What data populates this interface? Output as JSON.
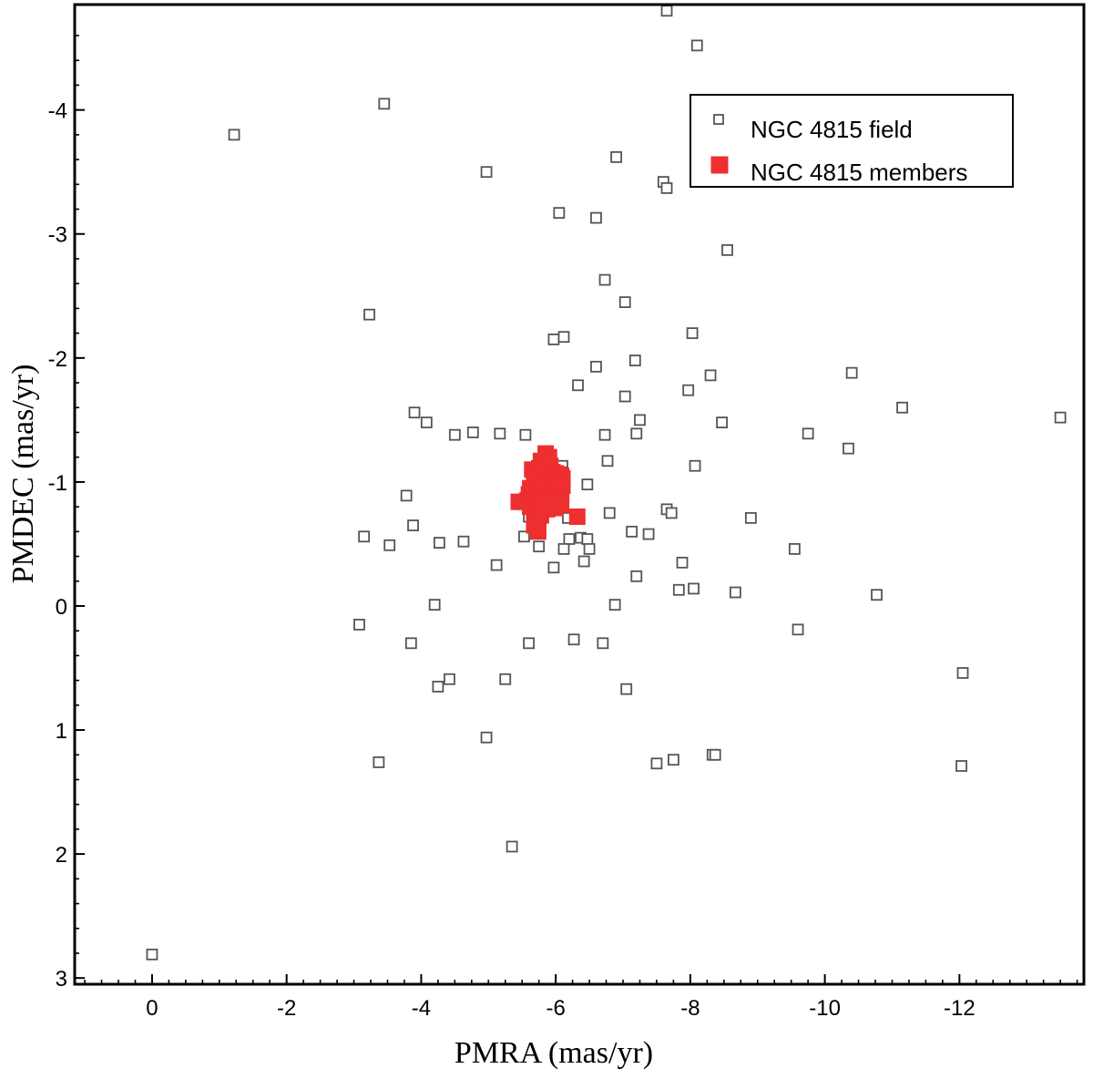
{
  "chart_data": {
    "type": "scatter",
    "xlabel": "PMRA (mas/yr)",
    "ylabel": "PMDEC (mas/yr)",
    "xlim": [
      1.15,
      -13.85
    ],
    "ylim": [
      3.05,
      -4.85
    ],
    "x_reversed": true,
    "y_reversed": true,
    "xticks": [
      0,
      -2,
      -4,
      -6,
      -8,
      -10,
      -12
    ],
    "xtick_labels": [
      "0",
      "-2",
      "-4",
      "-6",
      "-8",
      "-10",
      "-12"
    ],
    "yticks": [
      3,
      2,
      1,
      0,
      -1,
      -2,
      -3,
      -4
    ],
    "ytick_labels": [
      "3",
      "2",
      "1",
      "0",
      "-1",
      "-2",
      "-3",
      "-4"
    ],
    "grid": false,
    "legend": {
      "placement": "top-right",
      "entries": [
        "NGC 4815 field",
        "NGC 4815 members"
      ]
    },
    "colors": {
      "field": "#555555",
      "members": "#ee2f2f"
    },
    "series": [
      {
        "name": "NGC 4815 field",
        "marker": "open-square",
        "x": [
          -7.65,
          -8.1,
          -1.22,
          -3.45,
          -4.97,
          -6.9,
          -7.6,
          -7.65,
          -6.05,
          -6.6,
          -8.55,
          -6.73,
          -7.03,
          -3.23,
          -5.97,
          -6.12,
          -8.03,
          -7.18,
          -6.6,
          -8.3,
          -6.33,
          -7.97,
          -7.03,
          -10.4,
          -11.15,
          -13.5,
          -3.9,
          -4.08,
          -4.5,
          -4.77,
          -5.17,
          -5.55,
          -7.25,
          -7.2,
          -6.73,
          -8.47,
          -9.75,
          -10.35,
          -6.77,
          -8.07,
          -5.72,
          -6.1,
          -6.47,
          -3.78,
          -6.8,
          -7.65,
          -7.72,
          -8.9,
          -5.6,
          -6.18,
          -3.88,
          -7.13,
          -7.38,
          -5.53,
          -3.15,
          -3.53,
          -4.27,
          -4.63,
          -5.75,
          -6.2,
          -6.37,
          -6.47,
          -6.5,
          -6.12,
          -9.55,
          -6.42,
          -5.12,
          -5.97,
          -7.2,
          -7.88,
          -7.83,
          -8.05,
          -8.67,
          -10.77,
          -4.2,
          -6.88,
          -3.08,
          -9.6,
          -3.85,
          -5.6,
          -6.27,
          -6.7,
          -5.25,
          -4.42,
          -4.25,
          -7.05,
          -12.05,
          -4.97,
          -8.33,
          -8.37,
          -7.75,
          -7.5,
          -12.03,
          -3.37,
          -5.35,
          0.0
        ],
        "y": [
          -4.8,
          -4.52,
          -3.8,
          -4.05,
          -3.5,
          -3.62,
          -3.42,
          -3.37,
          -3.17,
          -3.13,
          -2.87,
          -2.63,
          -2.45,
          -2.35,
          -2.15,
          -2.17,
          -2.2,
          -1.98,
          -1.93,
          -1.86,
          -1.78,
          -1.74,
          -1.69,
          -1.88,
          -1.6,
          -1.52,
          -1.56,
          -1.48,
          -1.38,
          -1.4,
          -1.39,
          -1.38,
          -1.5,
          -1.39,
          -1.38,
          -1.48,
          -1.39,
          -1.27,
          -1.17,
          -1.13,
          -1.13,
          -1.13,
          -0.98,
          -0.89,
          -0.75,
          -0.78,
          -0.75,
          -0.71,
          -0.72,
          -0.71,
          -0.65,
          -0.6,
          -0.58,
          -0.56,
          -0.56,
          -0.49,
          -0.51,
          -0.52,
          -0.48,
          -0.54,
          -0.55,
          -0.54,
          -0.46,
          -0.46,
          -0.46,
          -0.36,
          -0.33,
          -0.31,
          -0.24,
          -0.35,
          -0.13,
          -0.14,
          -0.11,
          -0.09,
          -0.01,
          -0.01,
          0.15,
          0.19,
          0.3,
          0.3,
          0.27,
          0.3,
          0.59,
          0.59,
          0.65,
          0.67,
          0.54,
          1.06,
          1.2,
          1.2,
          1.24,
          1.27,
          1.29,
          1.26,
          1.94,
          2.81
        ]
      },
      {
        "name": "NGC 4815 members",
        "marker": "filled-square",
        "x": [
          -5.85,
          -5.9,
          -5.78,
          -5.82,
          -5.87,
          -5.92,
          -5.65,
          -5.72,
          -5.95,
          -6.0,
          -6.05,
          -6.08,
          -6.1,
          -5.68,
          -5.75,
          -5.8,
          -5.88,
          -5.93,
          -5.98,
          -6.02,
          -6.07,
          -6.1,
          -5.62,
          -5.7,
          -5.76,
          -5.82,
          -5.9,
          -5.95,
          -6.0,
          -6.05,
          -6.08,
          -5.6,
          -5.66,
          -5.72,
          -5.79,
          -5.85,
          -5.91,
          -5.97,
          -6.03,
          -6.08,
          -5.45,
          -5.52,
          -5.58,
          -5.64,
          -5.7,
          -5.76,
          -5.83,
          -5.89,
          -5.96,
          -6.02,
          -6.08,
          -5.62,
          -5.68,
          -5.74,
          -5.81,
          -5.87,
          -5.93,
          -5.99,
          -5.72,
          -5.78,
          -5.68,
          -5.74,
          -5.74,
          -6.32
        ],
        "y": [
          -1.23,
          -1.2,
          -1.17,
          -1.14,
          -1.12,
          -1.13,
          -1.1,
          -1.08,
          -1.08,
          -1.07,
          -1.06,
          -1.05,
          -1.03,
          -1.02,
          -1.0,
          -1.01,
          -1.0,
          -0.99,
          -0.98,
          -1.0,
          -0.99,
          -0.97,
          -0.95,
          -0.94,
          -0.95,
          -0.96,
          -0.95,
          -0.94,
          -0.93,
          -0.94,
          -0.92,
          -0.9,
          -0.9,
          -0.89,
          -0.88,
          -0.9,
          -0.89,
          -0.88,
          -0.9,
          -0.88,
          -0.84,
          -0.84,
          -0.85,
          -0.84,
          -0.83,
          -0.83,
          -0.84,
          -0.85,
          -0.83,
          -0.84,
          -0.82,
          -0.8,
          -0.78,
          -0.8,
          -0.79,
          -0.78,
          -0.8,
          -0.79,
          -0.72,
          -0.73,
          -0.65,
          -0.64,
          -0.6,
          -0.72
        ]
      }
    ]
  }
}
